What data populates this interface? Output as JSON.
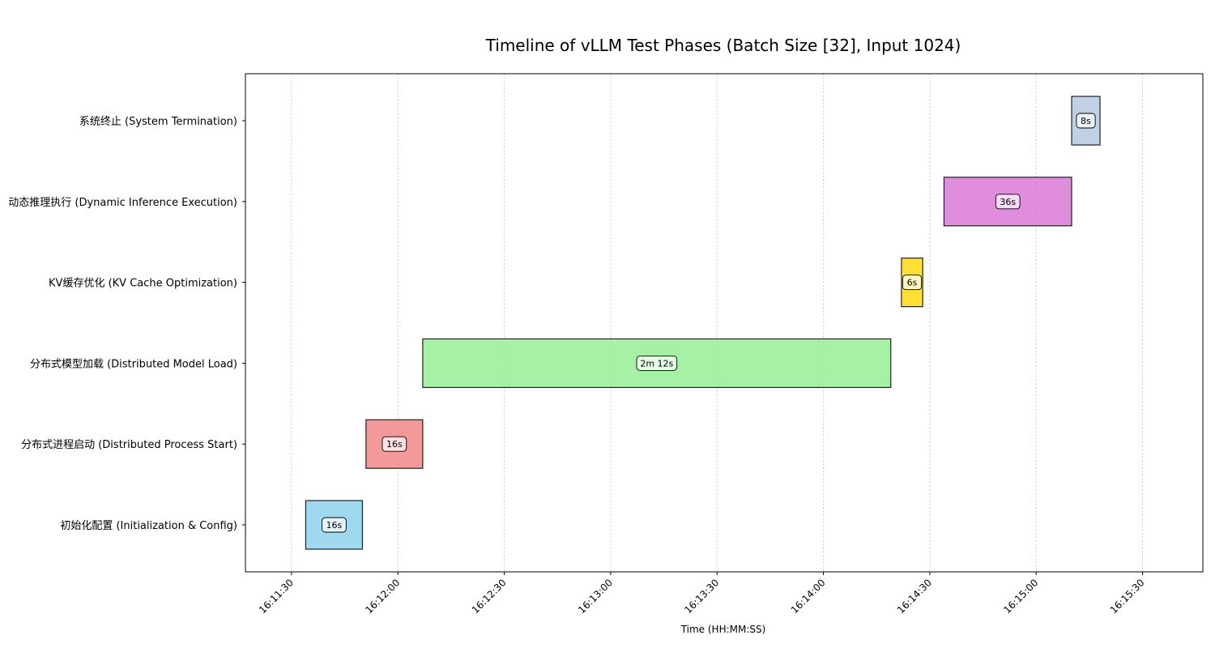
{
  "chart_data": {
    "type": "gantt",
    "title": "Timeline of vLLM Test Phases (Batch Size [32], Input 1024)",
    "xlabel": "Time (HH:MM:SS)",
    "ylabel": "",
    "x_tick_labels": [
      "16:11:30",
      "16:12:00",
      "16:12:30",
      "16:13:00",
      "16:13:30",
      "16:14:00",
      "16:14:30",
      "16:15:00",
      "16:15:30"
    ],
    "xlim": [
      "16:11:17",
      "16:15:47"
    ],
    "grid": "x-dotted",
    "phases": [
      {
        "name": "初始化配置 (Initialization & Config)",
        "start": "16:11:34",
        "end": "16:11:50",
        "duration_label": "16s",
        "color": "#87ceeb"
      },
      {
        "name": "分布式进程启动 (Distributed Process Start)",
        "start": "16:11:51",
        "end": "16:12:07",
        "duration_label": "16s",
        "color": "#f08080"
      },
      {
        "name": "分布式模型加载 (Distributed Model Load)",
        "start": "16:12:07",
        "end": "16:14:19",
        "duration_label": "2m 12s",
        "color": "#90ee90"
      },
      {
        "name": "KV缓存优化 (KV Cache Optimization)",
        "start": "16:14:22",
        "end": "16:14:28",
        "duration_label": "6s",
        "color": "#ffd700"
      },
      {
        "name": "动态推理执行 (Dynamic Inference Execution)",
        "start": "16:14:34",
        "end": "16:15:10",
        "duration_label": "36s",
        "color": "#da70d6"
      },
      {
        "name": "系统终止 (System Termination)",
        "start": "16:15:10",
        "end": "16:15:18",
        "duration_label": "8s",
        "color": "#b0c4de"
      }
    ]
  }
}
